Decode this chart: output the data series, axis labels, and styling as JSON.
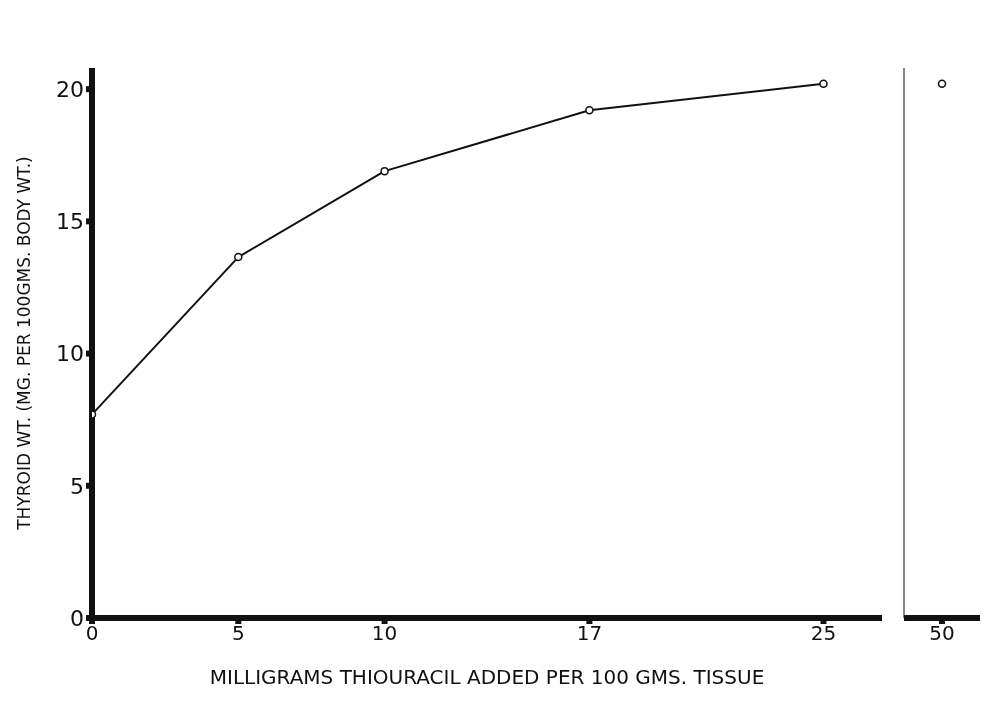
{
  "chart_data": [
    {
      "type": "line",
      "ylabel": "THYROID WT. (MG. PER 100GMS. BODY WT.)",
      "xlabel": "MILLIGRAMS THIOURACIL ADDED PER 100 GMS. TISSUE",
      "x": [
        0,
        5,
        10,
        17,
        25
      ],
      "xlim": [
        0,
        27
      ],
      "xticks": [
        0,
        5,
        10,
        17,
        25
      ],
      "ylim": [
        0,
        20.8
      ],
      "yticks": [
        0,
        5,
        10,
        15,
        20
      ],
      "series": [
        {
          "color": "#111111",
          "values": [
            7.7,
            13.65,
            16.9,
            19.2,
            20.2
          ]
        }
      ],
      "marker": "circle",
      "grid": false
    },
    {
      "type": "line",
      "categories": [
        "50"
      ],
      "ylim": [
        0,
        20.8
      ],
      "yticks": [
        0,
        5,
        10,
        15,
        20
      ],
      "tick_labels": "x",
      "series": [
        {
          "color": "#111111",
          "values": [
            20.2
          ]
        }
      ],
      "marker": "circle",
      "grid": false
    }
  ]
}
